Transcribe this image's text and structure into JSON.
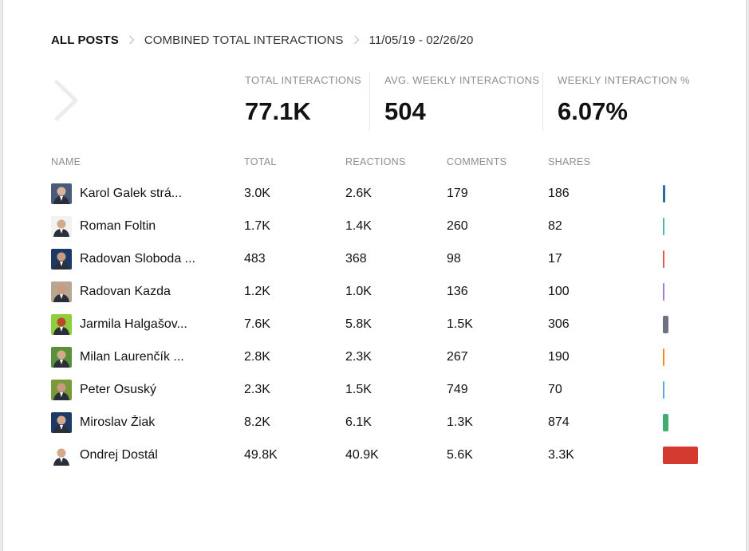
{
  "breadcrumb": {
    "items": [
      "ALL POSTS",
      "COMBINED TOTAL INTERACTIONS"
    ],
    "date_range": "11/05/19 - 02/26/20"
  },
  "stats": [
    {
      "label": "TOTAL INTERACTIONS",
      "value": "77.1K"
    },
    {
      "label": "AVG. WEEKLY INTERACTIONS",
      "value": "504"
    },
    {
      "label": "WEEKLY INTERACTION %",
      "value": "6.07%"
    }
  ],
  "table": {
    "headers": [
      "NAME",
      "TOTAL",
      "REACTIONS",
      "COMMENTS",
      "SHARES"
    ],
    "rows": [
      {
        "name": "Karol Galek strá...",
        "total": "3.0K",
        "reactions": "2.6K",
        "comments": "179",
        "shares": "186",
        "color": "#2f6a9e",
        "total_value": 3.0,
        "avatar_bg": "#4a5a7a",
        "avatar_face": "#d9b49a"
      },
      {
        "name": "Roman Foltin",
        "total": "1.7K",
        "reactions": "1.4K",
        "comments": "260",
        "shares": "82",
        "color": "#4fb5b3",
        "total_value": 1.7,
        "avatar_bg": "#f2f2f2",
        "avatar_face": "#d4a98a"
      },
      {
        "name": "Radovan Sloboda ...",
        "total": "483",
        "reactions": "368",
        "comments": "98",
        "shares": "17",
        "color": "#e05a5a",
        "total_value": 0.483,
        "avatar_bg": "#1d3a66",
        "avatar_face": "#c99a80"
      },
      {
        "name": "Radovan Kazda",
        "total": "1.2K",
        "reactions": "1.0K",
        "comments": "136",
        "shares": "100",
        "color": "#a97bd6",
        "total_value": 1.2,
        "avatar_bg": "#b8a690",
        "avatar_face": "#c99a80"
      },
      {
        "name": "Jarmila Halgašov...",
        "total": "7.6K",
        "reactions": "5.8K",
        "comments": "1.5K",
        "shares": "306",
        "color": "#6b7382",
        "total_value": 7.6,
        "avatar_bg": "#8fce3a",
        "avatar_face": "#c0452d"
      },
      {
        "name": "Milan Laurenčík ...",
        "total": "2.8K",
        "reactions": "2.3K",
        "comments": "267",
        "shares": "190",
        "color": "#f08a24",
        "total_value": 2.8,
        "avatar_bg": "#5a8f3c",
        "avatar_face": "#d4a98a"
      },
      {
        "name": "Peter Osuský",
        "total": "2.3K",
        "reactions": "1.5K",
        "comments": "749",
        "shares": "70",
        "color": "#5aa9e6",
        "total_value": 2.3,
        "avatar_bg": "#7a9a3a",
        "avatar_face": "#c99a80"
      },
      {
        "name": "Miroslav Žiak",
        "total": "8.2K",
        "reactions": "6.1K",
        "comments": "1.3K",
        "shares": "874",
        "color": "#3fae6f",
        "total_value": 8.2,
        "avatar_bg": "#1d3a66",
        "avatar_face": "#d4a98a"
      },
      {
        "name": "Ondrej Dostál",
        "total": "49.8K",
        "reactions": "40.9K",
        "comments": "5.6K",
        "shares": "3.3K",
        "color": "#d43a2f",
        "total_value": 49.8,
        "avatar_bg": "#ffffff",
        "avatar_face": "#d4a98a"
      }
    ]
  }
}
